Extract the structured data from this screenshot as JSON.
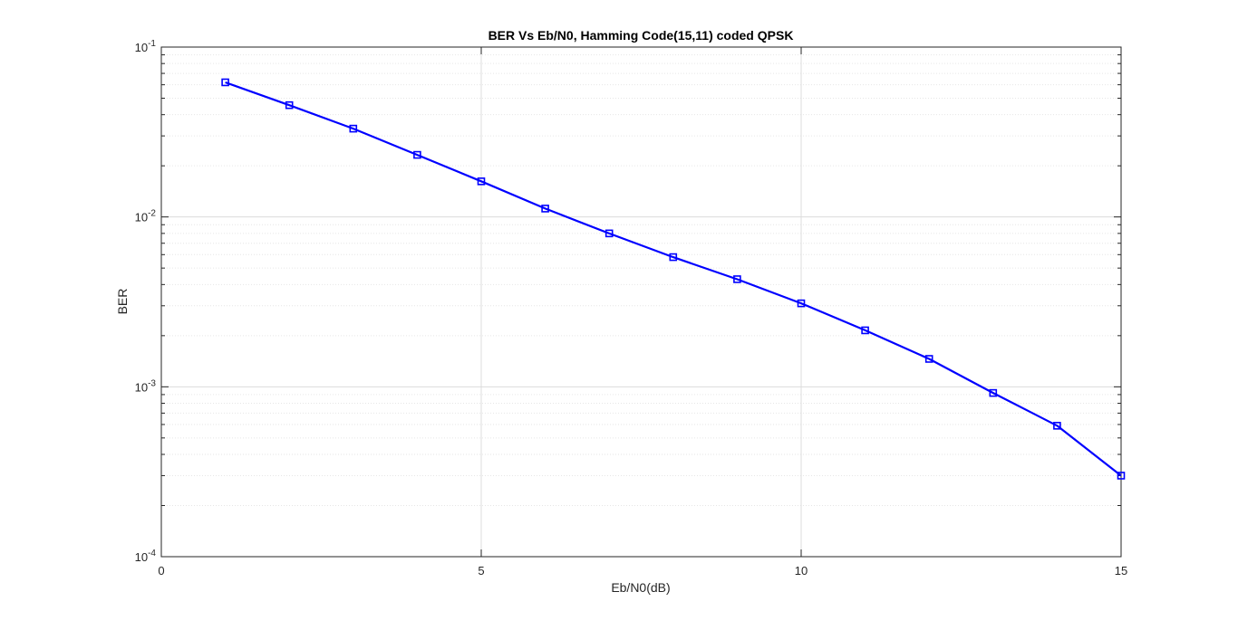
{
  "chart_data": {
    "type": "line",
    "title": "BER Vs Eb/N0, Hamming Code(15,11) coded QPSK",
    "xlabel": "Eb/N0(dB)",
    "ylabel": "BER",
    "xlim": [
      0,
      15
    ],
    "ylim": [
      0.0001,
      0.1
    ],
    "yscale": "log",
    "grid": true,
    "minor_grid": true,
    "x_ticks": [
      0,
      5,
      10,
      15
    ],
    "x_tick_labels": [
      "0",
      "5",
      "10",
      "15"
    ],
    "y_ticks": [
      {
        "value": 0.1,
        "base": "10",
        "exp": "-1"
      },
      {
        "value": 0.01,
        "base": "10",
        "exp": "-2"
      },
      {
        "value": 0.001,
        "base": "10",
        "exp": "-3"
      },
      {
        "value": 0.0001,
        "base": "10",
        "exp": "-4"
      }
    ],
    "series": [
      {
        "color": "#0000ff",
        "marker": "square",
        "x": [
          1,
          2,
          3,
          4,
          5,
          6,
          7,
          8,
          9,
          10,
          11,
          12,
          13,
          14,
          15
        ],
        "y": [
          0.062,
          0.0455,
          0.0331,
          0.0232,
          0.0162,
          0.0112,
          0.008,
          0.0058,
          0.0043,
          0.0031,
          0.00215,
          0.00146,
          0.00092,
          0.00059,
          0.0003
        ]
      }
    ]
  }
}
